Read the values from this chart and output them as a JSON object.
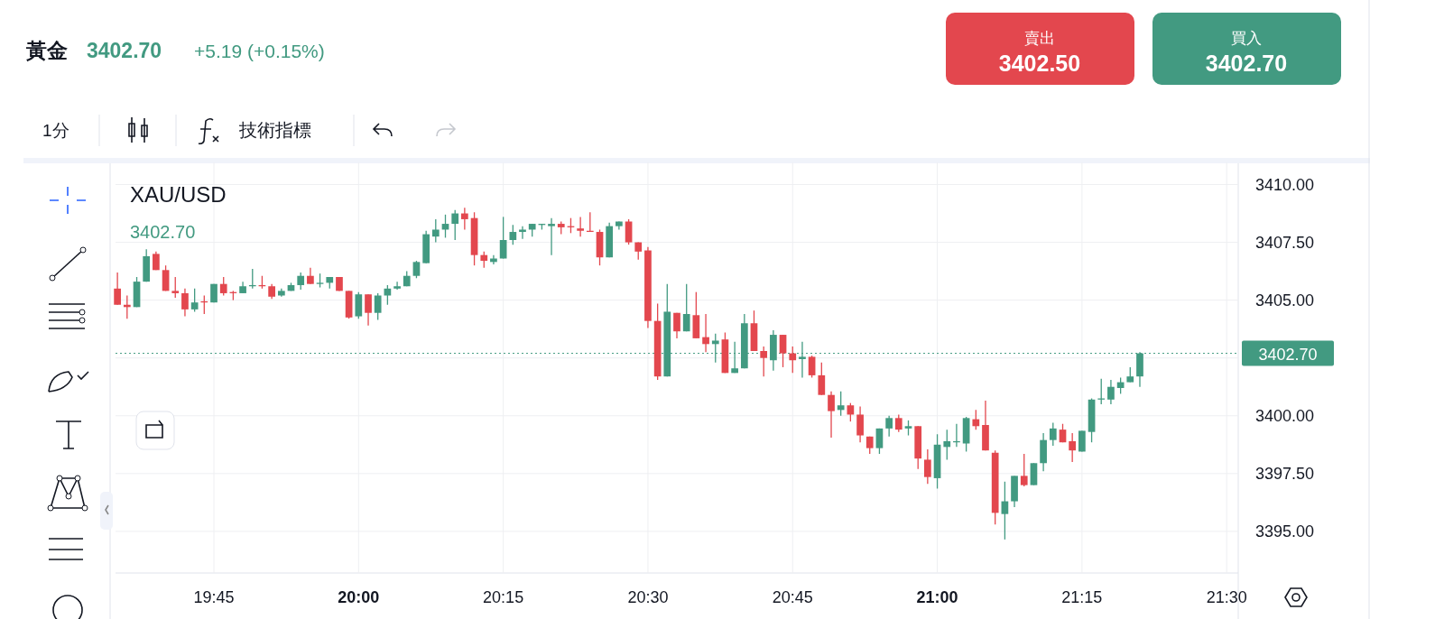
{
  "chart_data": {
    "type": "candlestick",
    "title": "XAU/USD",
    "annotations": [
      "黃金",
      "3402.70",
      "+5.19 (+0.15%)",
      "賣出",
      "3402.50",
      "買入",
      "3402.70",
      "1分",
      "技術指標",
      "3402.70"
    ],
    "colors": [
      "#e3474e",
      "#e3474e",
      "#429a81",
      "#429a81",
      "#e3474e",
      "#e3474e",
      "#e3474e",
      "#e3474e",
      "#429a81",
      "#e3474e",
      "#429a81",
      "#e3474e",
      "#e3474e",
      "#429a81",
      "#429a81",
      "#e3474e",
      "#e3474e",
      "#429a81",
      "#429a81",
      "#429a81",
      "#e3474e",
      "#429a81",
      "#429a81",
      "#e3474e",
      "#e3474e",
      "#429a81",
      "#e3474e",
      "#429a81",
      "#429a81",
      "#429a81",
      "#429a81",
      "#429a81",
      "#429a81",
      "#429a81",
      "#429a81",
      "#429a81",
      "#e3474e",
      "#e3474e",
      "#e3474e",
      "#429a81",
      "#429a81",
      "#429a81",
      "#429a81",
      "#429a81",
      "#429a81",
      "#429a81",
      "#e3474e",
      "#e3474e",
      "#e3474e",
      "#e3474e",
      "#e3474e",
      "#429a81",
      "#429a81",
      "#e3474e",
      "#e3474e",
      "#e3474e",
      "#e3474e",
      "#429a81",
      "#e3474e",
      "#429a81",
      "#e3474e",
      "#e3474e",
      "#429a81",
      "#e3474e",
      "#429a81",
      "#429a81",
      "#e3474e",
      "#e3474e",
      "#429a81",
      "#e3474e",
      "#e3474e",
      "#429a81",
      "#e3474e",
      "#e3474e",
      "#e3474e",
      "#429a81",
      "#e3474e",
      "#e3474e",
      "#e3474e",
      "#429a81",
      "#429a81",
      "#e3474e",
      "#429a81",
      "#e3474e",
      "#e3474e",
      "#429a81",
      "#429a81",
      "#429a81",
      "#429a81",
      "#e3474e",
      "#e3474e",
      "#e3474e",
      "#429a81",
      "#429a81",
      "#e3474e",
      "#429a81",
      "#429a81",
      "#429a81",
      "#e3474e",
      "#e3474e",
      "#429a81",
      "#429a81",
      "#429a81",
      "#429a81",
      "#429a81",
      "#429a81",
      "#429a81"
    ],
    "x": [
      19.5833,
      19.6,
      19.6167,
      19.6333,
      19.65,
      19.6667,
      19.6833,
      19.7,
      19.7167,
      19.7333,
      19.75,
      19.7667,
      19.7833,
      19.8,
      19.8167,
      19.8333,
      19.85,
      19.8667,
      19.8833,
      19.9,
      19.9167,
      19.9333,
      19.95,
      19.9667,
      19.9833,
      20,
      20.0167,
      20.0333,
      20.05,
      20.0667,
      20.0833,
      20.1,
      20.1167,
      20.1333,
      20.15,
      20.1667,
      20.1833,
      20.2,
      20.2167,
      20.2333,
      20.25,
      20.2667,
      20.2833,
      20.3,
      20.3167,
      20.3333,
      20.35,
      20.3667,
      20.3833,
      20.4,
      20.4167,
      20.4333,
      20.45,
      20.4667,
      20.4833,
      20.5,
      20.5167,
      20.5333,
      20.55,
      20.5667,
      20.5833,
      20.6,
      20.6167,
      20.6333,
      20.65,
      20.6667,
      20.6833,
      20.7,
      20.7167,
      20.7333,
      20.75,
      20.7667,
      20.7833,
      20.8,
      20.8167,
      20.8333,
      20.85,
      20.8667,
      20.8833,
      20.9,
      20.9167,
      20.9333,
      20.95,
      20.9667,
      20.9833,
      21,
      21.0167,
      21.0333,
      21.05,
      21.0667,
      21.0833,
      21.1,
      21.1167,
      21.1333,
      21.15,
      21.1667,
      21.1833,
      21.2,
      21.2167,
      21.2333,
      21.25,
      21.2667,
      21.2833,
      21.3,
      21.3167,
      21.3333,
      21.35
    ],
    "ohlc": [
      [
        3405.5,
        3406.2,
        3404.8,
        3404.8
      ],
      [
        3404.8,
        3405.2,
        3404.2,
        3404.7
      ],
      [
        3404.7,
        3406.0,
        3404.7,
        3405.8
      ],
      [
        3405.8,
        3407.2,
        3405.8,
        3406.9
      ],
      [
        3407.0,
        3407.1,
        3406.3,
        3406.3
      ],
      [
        3406.3,
        3406.5,
        3405.4,
        3405.4
      ],
      [
        3405.4,
        3406.0,
        3405.1,
        3405.3
      ],
      [
        3405.3,
        3405.5,
        3404.3,
        3404.6
      ],
      [
        3404.6,
        3405.5,
        3404.5,
        3404.9
      ],
      [
        3404.95,
        3405.2,
        3404.4,
        3404.9
      ],
      [
        3404.9,
        3405.7,
        3404.9,
        3405.7
      ],
      [
        3405.7,
        3406.0,
        3405.2,
        3405.3
      ],
      [
        3405.35,
        3405.4,
        3405.0,
        3405.3
      ],
      [
        3405.3,
        3405.8,
        3405.3,
        3405.6
      ],
      [
        3405.6,
        3406.35,
        3405.5,
        3405.65
      ],
      [
        3405.65,
        3406.05,
        3405.5,
        3405.6
      ],
      [
        3405.6,
        3405.7,
        3405.05,
        3405.15
      ],
      [
        3405.2,
        3405.5,
        3405.15,
        3405.4
      ],
      [
        3405.4,
        3405.75,
        3405.4,
        3405.65
      ],
      [
        3405.65,
        3406.2,
        3405.45,
        3406.05
      ],
      [
        3406.05,
        3406.4,
        3405.7,
        3405.7
      ],
      [
        3405.7,
        3406.15,
        3405.55,
        3405.75
      ],
      [
        3405.75,
        3406.0,
        3405.5,
        3406.0
      ],
      [
        3406.0,
        3406.0,
        3405.4,
        3405.4
      ],
      [
        3405.4,
        3405.4,
        3404.2,
        3404.25
      ],
      [
        3404.3,
        3405.35,
        3404.2,
        3405.25
      ],
      [
        3405.25,
        3405.25,
        3403.9,
        3404.45
      ],
      [
        3404.45,
        3405.3,
        3404.15,
        3405.2
      ],
      [
        3405.2,
        3405.65,
        3404.8,
        3405.5
      ],
      [
        3405.5,
        3405.8,
        3405.45,
        3405.6
      ],
      [
        3405.6,
        3406.25,
        3405.6,
        3406.05
      ],
      [
        3406.05,
        3406.7,
        3405.95,
        3406.65
      ],
      [
        3406.6,
        3408.0,
        3406.6,
        3407.85
      ],
      [
        3407.75,
        3408.5,
        3407.5,
        3408.05
      ],
      [
        3408.05,
        3408.7,
        3407.7,
        3408.3
      ],
      [
        3408.3,
        3408.9,
        3407.6,
        3408.75
      ],
      [
        3408.75,
        3409.0,
        3408.05,
        3408.5
      ],
      [
        3408.55,
        3408.8,
        3406.5,
        3406.95
      ],
      [
        3406.95,
        3407.1,
        3406.4,
        3406.7
      ],
      [
        3406.65,
        3406.95,
        3406.55,
        3406.8
      ],
      [
        3406.8,
        3408.6,
        3406.8,
        3407.6
      ],
      [
        3407.6,
        3408.25,
        3407.4,
        3407.95
      ],
      [
        3407.95,
        3408.2,
        3407.65,
        3408.05
      ],
      [
        3408.05,
        3408.3,
        3407.75,
        3408.3
      ],
      [
        3408.25,
        3408.3,
        3408.05,
        3408.3
      ],
      [
        3408.2,
        3408.55,
        3406.95,
        3408.3
      ],
      [
        3408.3,
        3408.4,
        3407.85,
        3408.15
      ],
      [
        3408.2,
        3408.55,
        3407.9,
        3408.15
      ],
      [
        3408.1,
        3408.6,
        3407.75,
        3408.0
      ],
      [
        3408.0,
        3408.8,
        3407.95,
        3407.95
      ],
      [
        3407.95,
        3408.05,
        3406.5,
        3406.85
      ],
      [
        3406.85,
        3408.35,
        3406.85,
        3408.2
      ],
      [
        3408.2,
        3408.4,
        3408.05,
        3408.4
      ],
      [
        3408.4,
        3408.5,
        3407.4,
        3407.5
      ],
      [
        3407.5,
        3407.5,
        3406.75,
        3407.1
      ],
      [
        3407.15,
        3407.3,
        3403.8,
        3404.1
      ],
      [
        3404.1,
        3404.85,
        3401.55,
        3401.7
      ],
      [
        3401.7,
        3405.7,
        3401.7,
        3404.5
      ],
      [
        3404.45,
        3404.45,
        3403.35,
        3403.65
      ],
      [
        3403.65,
        3405.7,
        3403.65,
        3404.4
      ],
      [
        3404.35,
        3405.35,
        3403.35,
        3403.35
      ],
      [
        3403.4,
        3404.4,
        3402.75,
        3403.1
      ],
      [
        3403.1,
        3403.55,
        3402.3,
        3403.25
      ],
      [
        3403.3,
        3403.6,
        3401.85,
        3401.85
      ],
      [
        3401.85,
        3403.2,
        3401.85,
        3402.05
      ],
      [
        3402.05,
        3404.4,
        3402.05,
        3404.0
      ],
      [
        3404.0,
        3404.55,
        3402.8,
        3402.8
      ],
      [
        3402.8,
        3403.0,
        3401.7,
        3402.5
      ],
      [
        3402.4,
        3403.7,
        3401.95,
        3403.5
      ],
      [
        3403.5,
        3403.5,
        3402.1,
        3402.7
      ],
      [
        3402.7,
        3403.0,
        3401.85,
        3402.4
      ],
      [
        3402.45,
        3403.2,
        3401.65,
        3402.55
      ],
      [
        3402.55,
        3402.6,
        3401.65,
        3401.75
      ],
      [
        3401.75,
        3402.3,
        3400.9,
        3400.9
      ],
      [
        3400.9,
        3401.05,
        3399.05,
        3400.2
      ],
      [
        3400.25,
        3401.05,
        3400.0,
        3400.45
      ],
      [
        3400.45,
        3400.55,
        3399.75,
        3400.05
      ],
      [
        3400.05,
        3400.4,
        3398.85,
        3399.15
      ],
      [
        3399.1,
        3399.1,
        3398.35,
        3398.6
      ],
      [
        3398.6,
        3399.45,
        3398.35,
        3399.45
      ],
      [
        3399.45,
        3400.0,
        3399.1,
        3399.9
      ],
      [
        3399.9,
        3400.05,
        3399.3,
        3399.4
      ],
      [
        3399.45,
        3399.8,
        3399.15,
        3399.55
      ],
      [
        3399.55,
        3399.55,
        3397.7,
        3398.15
      ],
      [
        3398.1,
        3398.55,
        3397.05,
        3397.35
      ],
      [
        3397.3,
        3399.2,
        3396.85,
        3398.75
      ],
      [
        3398.65,
        3399.4,
        3398.1,
        3398.9
      ],
      [
        3398.85,
        3399.65,
        3398.65,
        3398.9
      ],
      [
        3398.8,
        3399.95,
        3398.45,
        3399.9
      ],
      [
        3399.85,
        3400.25,
        3399.4,
        3399.55
      ],
      [
        3399.6,
        3400.65,
        3398.5,
        3398.5
      ],
      [
        3398.4,
        3398.5,
        3395.3,
        3395.8
      ],
      [
        3395.75,
        3397.15,
        3394.65,
        3396.3
      ],
      [
        3396.3,
        3397.4,
        3396.05,
        3397.4
      ],
      [
        3397.4,
        3398.35,
        3396.95,
        3397.0
      ],
      [
        3397.0,
        3397.95,
        3397.0,
        3397.95
      ],
      [
        3397.95,
        3399.25,
        3397.6,
        3398.95
      ],
      [
        3398.95,
        3399.7,
        3398.7,
        3399.45
      ],
      [
        3399.4,
        3399.65,
        3398.85,
        3398.85
      ],
      [
        3398.9,
        3399.25,
        3398.0,
        3398.5
      ],
      [
        3398.45,
        3399.35,
        3398.45,
        3399.35
      ],
      [
        3399.3,
        3400.75,
        3398.85,
        3400.7
      ],
      [
        3400.7,
        3401.6,
        3400.5,
        3400.75
      ],
      [
        3400.7,
        3401.55,
        3400.5,
        3401.25
      ],
      [
        3401.2,
        3401.65,
        3400.95,
        3401.45
      ],
      [
        3401.45,
        3402.1,
        3401.45,
        3401.7
      ],
      [
        3401.7,
        3402.75,
        3401.25,
        3402.7
      ]
    ],
    "xlim": [
      19.58,
      21.52
    ],
    "xticks": [
      {
        "value": 19.75,
        "label": "19:45"
      },
      {
        "value": 20,
        "label": "20:00"
      },
      {
        "value": 20.25,
        "label": "20:15"
      },
      {
        "value": 20.5,
        "label": "20:30"
      },
      {
        "value": 20.75,
        "label": "20:45"
      },
      {
        "value": 21,
        "label": "21:00"
      },
      {
        "value": 21.25,
        "label": "21:15"
      },
      {
        "value": 21.5,
        "label": "21:30"
      }
    ],
    "ylim": [
      3393.2,
      3410.8
    ],
    "yticks": [
      {
        "value": 3395,
        "label": "3395.00"
      },
      {
        "value": 3397.5,
        "label": "3397.50"
      },
      {
        "value": 3400,
        "label": "3400.00"
      },
      {
        "value": 3402.5,
        "label": null
      },
      {
        "value": 3405,
        "label": "3405.00"
      },
      {
        "value": 3407.5,
        "label": "3407.50"
      },
      {
        "value": 3410,
        "label": "3410.00"
      }
    ],
    "ref_lines": [
      {
        "axis": "y",
        "value": 3402.7,
        "label": "3402.70",
        "color": "#429a81",
        "line_style": "dotted"
      }
    ],
    "grid": true
  }
}
